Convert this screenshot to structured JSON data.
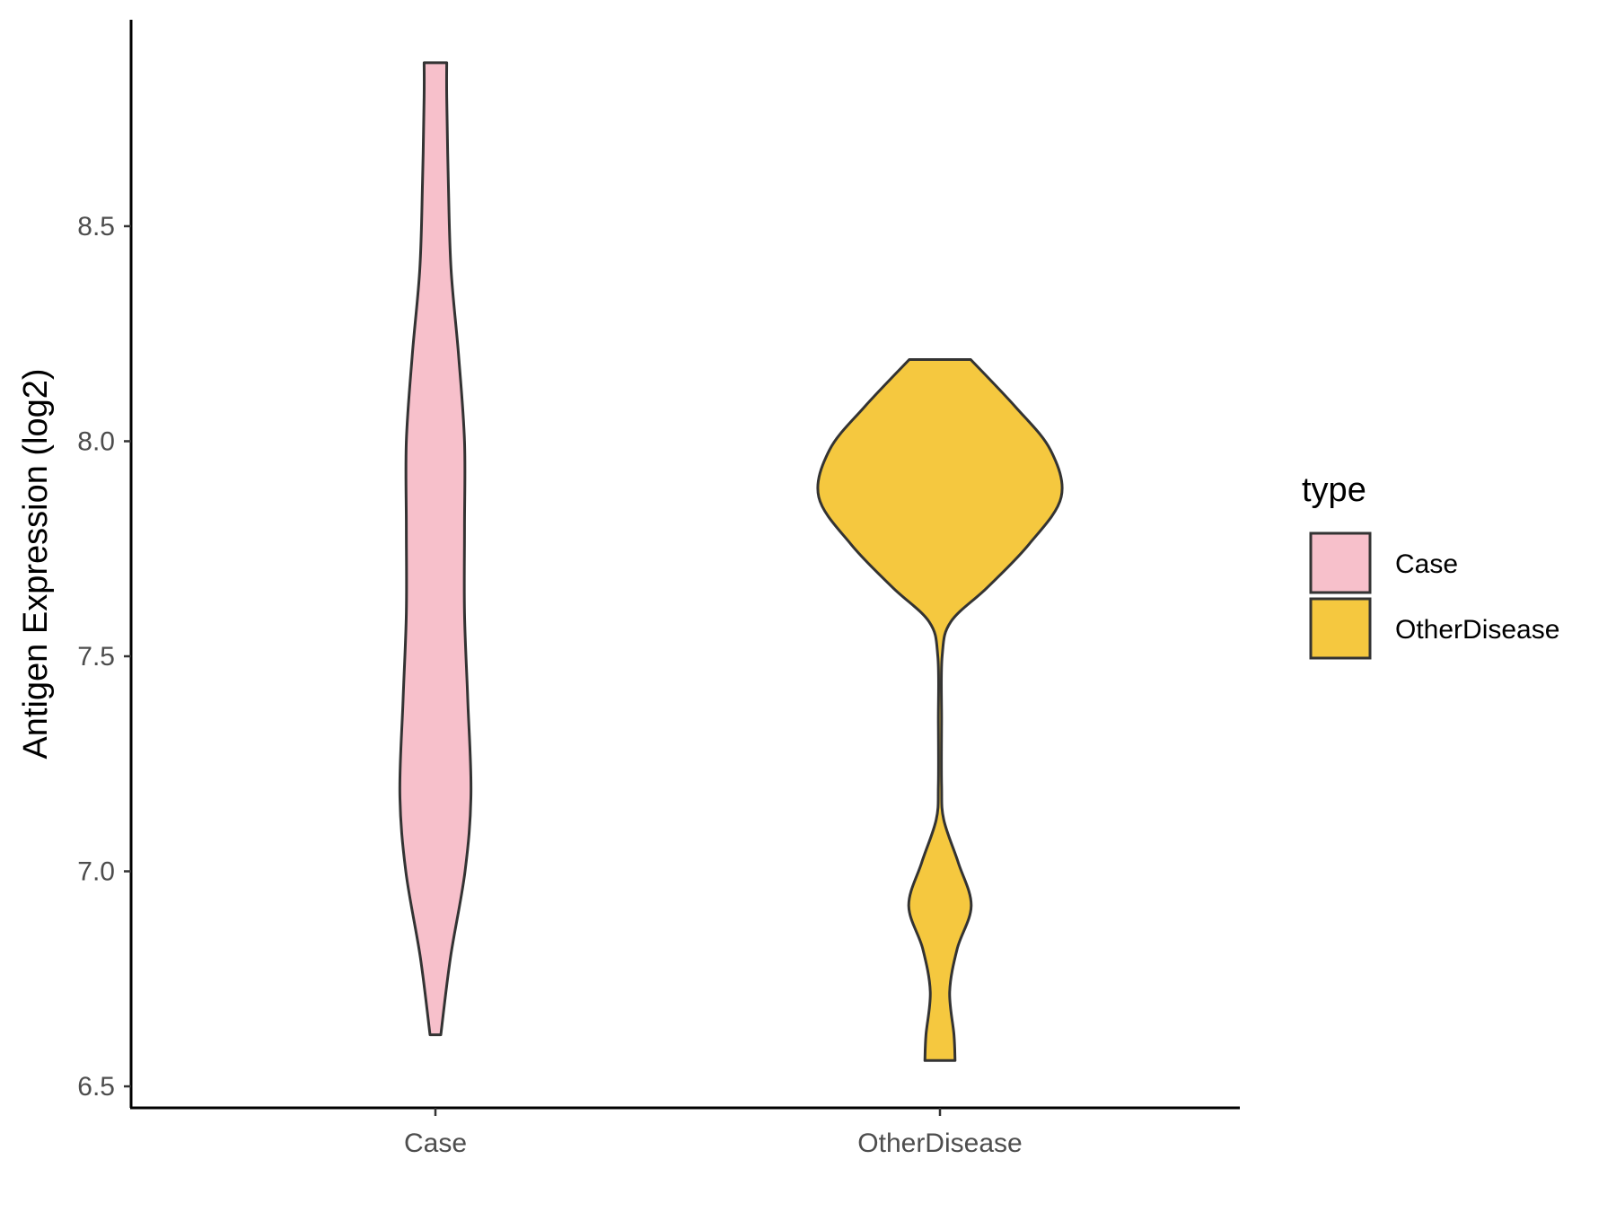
{
  "chart_data": {
    "type": "violin",
    "title": "",
    "xlabel": "",
    "ylabel": "Antigen Expression (log2)",
    "ylim": [
      6.45,
      8.98
    ],
    "yticks": [
      6.5,
      7.0,
      7.5,
      8.0,
      8.5
    ],
    "ytick_labels": [
      "6.5",
      "7.0",
      "7.5",
      "8.0",
      "8.5"
    ],
    "grid": false,
    "categories": [
      "Case",
      "OtherDisease"
    ],
    "legend": {
      "title": "type",
      "position": "right",
      "entries": [
        "Case",
        "OtherDisease"
      ]
    },
    "series": [
      {
        "name": "Case",
        "color": "#F7C0CB",
        "min": 6.62,
        "max": 8.88,
        "density_profile": [
          {
            "y": 6.62,
            "width": 0.1
          },
          {
            "y": 6.8,
            "width": 0.28
          },
          {
            "y": 7.0,
            "width": 0.55
          },
          {
            "y": 7.18,
            "width": 0.66
          },
          {
            "y": 7.4,
            "width": 0.6
          },
          {
            "y": 7.6,
            "width": 0.54
          },
          {
            "y": 7.8,
            "width": 0.54
          },
          {
            "y": 8.0,
            "width": 0.54
          },
          {
            "y": 8.2,
            "width": 0.43
          },
          {
            "y": 8.4,
            "width": 0.29
          },
          {
            "y": 8.6,
            "width": 0.24
          },
          {
            "y": 8.8,
            "width": 0.21
          },
          {
            "y": 8.88,
            "width": 0.21
          }
        ]
      },
      {
        "name": "OtherDisease",
        "color": "#F5C83F",
        "min": 6.56,
        "max": 8.19,
        "density_profile": [
          {
            "y": 6.56,
            "width": 0.28
          },
          {
            "y": 6.62,
            "width": 0.26
          },
          {
            "y": 6.72,
            "width": 0.18
          },
          {
            "y": 6.82,
            "width": 0.32
          },
          {
            "y": 6.92,
            "width": 0.58
          },
          {
            "y": 7.02,
            "width": 0.34
          },
          {
            "y": 7.12,
            "width": 0.07
          },
          {
            "y": 7.2,
            "width": 0.03
          },
          {
            "y": 7.35,
            "width": 0.03
          },
          {
            "y": 7.5,
            "width": 0.04
          },
          {
            "y": 7.58,
            "width": 0.2
          },
          {
            "y": 7.66,
            "width": 0.88
          },
          {
            "y": 7.76,
            "width": 1.65
          },
          {
            "y": 7.87,
            "width": 2.25
          },
          {
            "y": 7.98,
            "width": 2.05
          },
          {
            "y": 8.08,
            "width": 1.4
          },
          {
            "y": 8.19,
            "width": 0.57
          }
        ]
      }
    ]
  }
}
